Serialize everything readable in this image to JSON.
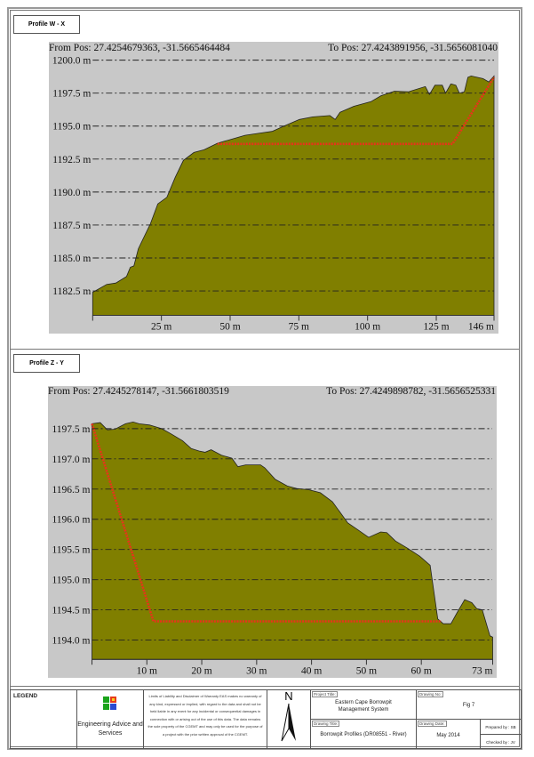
{
  "panels": [
    {
      "label": "Profile W - X",
      "from_pos": "From Pos: 27.4254679363, -31.5665464484",
      "to_pos": "To Pos: 27.4243891956, -31.5656081040"
    },
    {
      "label": "Profile Z - Y",
      "from_pos": "From Pos: 27.4245278147, -31.5661803519",
      "to_pos": "To Pos: 27.4249898782, -31.5656525331"
    }
  ],
  "chart_data": [
    {
      "type": "area",
      "title": "",
      "xlim": [
        0,
        146
      ],
      "ylim": [
        1180.65,
        1200.5
      ],
      "x_ticks": [
        25,
        50,
        75,
        100,
        125,
        146
      ],
      "x_tick_labels": [
        "25 m",
        "50 m",
        "75 m",
        "100 m",
        "125 m",
        "146 m"
      ],
      "y_ticks": [
        1182.5,
        1185.0,
        1187.5,
        1190.0,
        1192.5,
        1195.0,
        1197.5,
        1200.0
      ],
      "y_tick_labels": [
        "1182.5 m",
        "1185.0 m",
        "1187.5 m",
        "1190.0 m",
        "1192.5 m",
        "1195.0 m",
        "1197.5 m",
        "1200.0 m"
      ],
      "grid": true,
      "fill_color": "#807f00",
      "background_color": "#c8c8c8",
      "terrain": [
        [
          0,
          1182.4
        ],
        [
          5.1,
          1183.0
        ],
        [
          8.4,
          1183.1
        ],
        [
          12.3,
          1183.6
        ],
        [
          13.7,
          1184.3
        ],
        [
          15,
          1184.4
        ],
        [
          16.6,
          1185.7
        ],
        [
          21,
          1187.6
        ],
        [
          23.7,
          1189.1
        ],
        [
          27,
          1189.6
        ],
        [
          30,
          1191.1
        ],
        [
          33,
          1192.4
        ],
        [
          36.8,
          1193.0
        ],
        [
          40.5,
          1193.2
        ],
        [
          45.4,
          1193.7
        ],
        [
          50.4,
          1194.0
        ],
        [
          55.4,
          1194.3
        ],
        [
          60.3,
          1194.45
        ],
        [
          65.3,
          1194.6
        ],
        [
          69.6,
          1195.0
        ],
        [
          75.2,
          1195.5
        ],
        [
          80.1,
          1195.7
        ],
        [
          86.3,
          1195.8
        ],
        [
          88.2,
          1195.5
        ],
        [
          90,
          1196.05
        ],
        [
          95,
          1196.5
        ],
        [
          101.2,
          1196.85
        ],
        [
          104.9,
          1197.3
        ],
        [
          109.8,
          1197.65
        ],
        [
          114.8,
          1197.6
        ],
        [
          121,
          1198.0
        ],
        [
          122.5,
          1197.4
        ],
        [
          124.5,
          1198.1
        ],
        [
          127.2,
          1198.1
        ],
        [
          128.4,
          1197.5
        ],
        [
          130.3,
          1198.2
        ],
        [
          132.1,
          1198.1
        ],
        [
          133.4,
          1197.5
        ],
        [
          135.2,
          1197.6
        ],
        [
          136.5,
          1198.7
        ],
        [
          137.7,
          1198.8
        ],
        [
          142,
          1198.6
        ],
        [
          144.1,
          1198.35
        ],
        [
          146,
          1198.8
        ]
      ],
      "design_line_color": "#e8331a",
      "design_line": [
        [
          45.4,
          1193.65
        ],
        [
          130.9,
          1193.65
        ],
        [
          146,
          1198.7
        ]
      ]
    },
    {
      "type": "area",
      "title": "",
      "xlim": [
        0,
        73
      ],
      "ylim": [
        1193.68,
        1197.9
      ],
      "x_ticks": [
        10,
        20,
        30,
        40,
        50,
        60,
        73
      ],
      "x_tick_labels": [
        "10 m",
        "20 m",
        "30 m",
        "40 m",
        "50 m",
        "60 m",
        "73 m"
      ],
      "y_ticks": [
        1194.0,
        1194.5,
        1195.0,
        1195.5,
        1196.0,
        1196.5,
        1197.0,
        1197.5
      ],
      "y_tick_labels": [
        "1194.0 m",
        "1194.5 m",
        "1195.0 m",
        "1195.5 m",
        "1196.0 m",
        "1196.5 m",
        "1197.0 m",
        "1197.5 m"
      ],
      "grid": true,
      "fill_color": "#807f00",
      "background_color": "#c8c8c8",
      "terrain": [
        [
          0,
          1197.58
        ],
        [
          1.5,
          1197.6
        ],
        [
          2.8,
          1197.48
        ],
        [
          4.2,
          1197.49
        ],
        [
          6.1,
          1197.58
        ],
        [
          7.5,
          1197.61
        ],
        [
          8.6,
          1197.58
        ],
        [
          10.5,
          1197.56
        ],
        [
          12.7,
          1197.5
        ],
        [
          14.3,
          1197.42
        ],
        [
          16.5,
          1197.3
        ],
        [
          18.1,
          1197.17
        ],
        [
          19.5,
          1197.13
        ],
        [
          20.6,
          1197.11
        ],
        [
          21.7,
          1197.15
        ],
        [
          23.6,
          1197.06
        ],
        [
          25.5,
          1197.01
        ],
        [
          26.6,
          1196.87
        ],
        [
          28,
          1196.9
        ],
        [
          30.7,
          1196.9
        ],
        [
          31.5,
          1196.85
        ],
        [
          33.4,
          1196.66
        ],
        [
          35.6,
          1196.55
        ],
        [
          37.3,
          1196.51
        ],
        [
          39.5,
          1196.49
        ],
        [
          41.6,
          1196.44
        ],
        [
          43.8,
          1196.29
        ],
        [
          46.6,
          1195.94
        ],
        [
          48.2,
          1195.84
        ],
        [
          50.4,
          1195.7
        ],
        [
          52.6,
          1195.79
        ],
        [
          53.7,
          1195.78
        ],
        [
          55.3,
          1195.64
        ],
        [
          57.5,
          1195.52
        ],
        [
          59.7,
          1195.39
        ],
        [
          61.6,
          1195.24
        ],
        [
          63,
          1194.35
        ],
        [
          64,
          1194.27
        ],
        [
          65.4,
          1194.27
        ],
        [
          66.5,
          1194.45
        ],
        [
          67.9,
          1194.67
        ],
        [
          69.2,
          1194.62
        ],
        [
          70.1,
          1194.52
        ],
        [
          71.1,
          1194.5
        ],
        [
          72.5,
          1194.07
        ],
        [
          73,
          1194.05
        ]
      ],
      "design_line_color": "#e8331a",
      "design_line": [
        [
          0,
          1197.58
        ],
        [
          11.2,
          1194.31
        ],
        [
          63.7,
          1194.31
        ]
      ]
    }
  ],
  "footer": {
    "legend_label": "LEGEND",
    "company": "Engineering Advice and Services",
    "disclaimer": "Limits of Liability and Disclaimer of Warranty EAS makes no warranty of any kind, expressed or implied, with regard to the data and shall not be held liable in any event for any incidental or consequential damages in connection with or arising out of the use of this data. The data remains the sole property of the CGEMT and may only be used for the purpose of a project with the prior written approval of the CGEMT.",
    "north": "N",
    "project_title_label": "Project Title:",
    "project_title": "Eastern Cape Borrowpit Management System",
    "drawing_title_label": "Drawing Title:",
    "drawing_title": "Borrowpit Profiles (DR08551 - River)",
    "drawing_no_label": "Drawing No:",
    "drawing_no": "Fig 7",
    "drawing_date_label": "Drawing Date:",
    "drawing_date": "May 2014",
    "prepared_by": "Prepared by : SB",
    "checked_by": "Checked by : JV"
  }
}
